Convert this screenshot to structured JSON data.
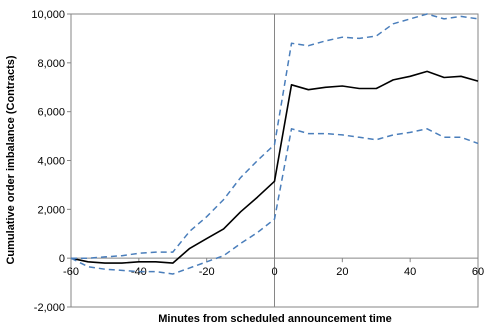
{
  "chart_data": {
    "type": "line",
    "title": "",
    "xlabel": "Minutes from scheduled announcement time",
    "ylabel": "Cumulative order imbalance (Contracts)",
    "xlim": [
      -60,
      60
    ],
    "ylim": [
      -2000,
      10000
    ],
    "x_ticks": [
      -60,
      -40,
      -20,
      0,
      20,
      40,
      60
    ],
    "x_tick_labels": [
      "-60",
      "-40",
      "-20",
      "0",
      "20",
      "40",
      "60"
    ],
    "y_ticks": [
      -2000,
      0,
      2000,
      4000,
      6000,
      8000,
      10000
    ],
    "y_tick_labels": [
      "-2,000",
      "0",
      "2,000",
      "4,000",
      "6,000",
      "8,000",
      "10,000"
    ],
    "grid": false,
    "legend": "none",
    "vertical_reference_line_x": 0,
    "x": [
      -60,
      -55,
      -50,
      -45,
      -40,
      -35,
      -30,
      -25,
      -20,
      -15,
      -10,
      -5,
      0,
      5,
      10,
      15,
      20,
      25,
      30,
      35,
      40,
      45,
      50,
      55,
      60
    ],
    "series": [
      {
        "color": "#000000",
        "style": "solid",
        "values": [
          0,
          -150,
          -200,
          -200,
          -150,
          -150,
          -200,
          400,
          800,
          1200,
          1900,
          2500,
          3150,
          7100,
          6900,
          7000,
          7050,
          6950,
          6950,
          7300,
          7450,
          7650,
          7400,
          7450,
          7250
        ]
      },
      {
        "color": "#4a7ebb",
        "style": "dashed",
        "values": [
          0,
          0,
          50,
          100,
          200,
          250,
          250,
          1100,
          1700,
          2400,
          3300,
          4000,
          4650,
          8800,
          8700,
          8900,
          9050,
          9000,
          9100,
          9600,
          9800,
          10000,
          9800,
          9900,
          9800
        ]
      },
      {
        "color": "#4a7ebb",
        "style": "dashed",
        "values": [
          0,
          -350,
          -450,
          -500,
          -550,
          -550,
          -650,
          -400,
          -150,
          100,
          600,
          1050,
          1600,
          5300,
          5100,
          5100,
          5050,
          4950,
          4850,
          5050,
          5150,
          5300,
          4950,
          4950,
          4700
        ]
      }
    ]
  }
}
